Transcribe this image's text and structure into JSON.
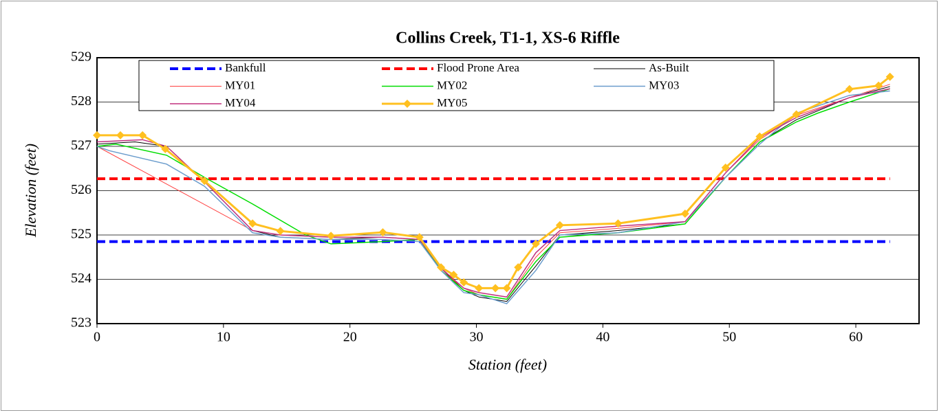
{
  "chart_data": {
    "type": "line",
    "title": "Collins Creek, T1-1, XS-6 Riffle",
    "x_label": "Station (feet)",
    "y_label": "Elevation (feet)",
    "xlim": [
      0,
      65
    ],
    "xticks": [
      0,
      10,
      20,
      30,
      40,
      50,
      60
    ],
    "ylim": [
      523,
      529
    ],
    "yticks": [
      523,
      524,
      525,
      526,
      527,
      528,
      529
    ],
    "grid": true,
    "legend": "top",
    "series": [
      {
        "name": "Bankfull",
        "color": "#0000ff",
        "dash": true,
        "width": 4,
        "x": [
          0,
          62.7
        ],
        "values": [
          524.85,
          524.85
        ]
      },
      {
        "name": "Flood Prone Area",
        "color": "#ff0000",
        "dash": true,
        "width": 4,
        "x": [
          0,
          62.7
        ],
        "values": [
          526.27,
          526.27
        ]
      },
      {
        "name": "As-Built",
        "color": "#000000",
        "width": 1,
        "x": [
          0,
          3,
          5.5,
          8.5,
          12.3,
          14.5,
          18.5,
          22.6,
          25.5,
          27.2,
          29,
          30.2,
          32.4,
          34.7,
          36.6,
          41.2,
          46.5,
          49.7,
          52.4,
          55.3,
          59.5,
          62.7
        ],
        "values": [
          527.05,
          527.1,
          527.0,
          526.2,
          525.1,
          524.95,
          524.9,
          524.95,
          524.9,
          524.25,
          523.75,
          523.6,
          523.5,
          524.3,
          525.0,
          525.1,
          525.25,
          526.3,
          527.1,
          527.6,
          528.1,
          528.35
        ]
      },
      {
        "name": "MY01",
        "color": "#ff4040",
        "width": 1,
        "x": [
          0,
          12.3,
          14.5,
          18.5,
          22.6,
          25.5,
          27.2,
          29,
          30.2,
          32.4,
          34.7,
          36.6,
          41.2,
          46.5,
          49.7,
          52.4,
          55.3,
          59.5,
          62.7
        ],
        "values": [
          527.0,
          525.1,
          525.0,
          524.95,
          524.95,
          524.9,
          524.2,
          523.8,
          523.65,
          523.55,
          524.5,
          525.05,
          525.15,
          525.3,
          526.4,
          527.15,
          527.7,
          528.1,
          528.4
        ]
      },
      {
        "name": "MY02",
        "color": "#00dd00",
        "width": 1.5,
        "x": [
          0,
          1.5,
          5.5,
          8.5,
          12.3,
          16.5,
          18.5,
          22.6,
          25.5,
          27.2,
          29,
          30.2,
          32.4,
          34.7,
          36.6,
          41.2,
          46.5,
          49.7,
          52.4,
          55.3,
          57,
          59.5,
          62.7
        ],
        "values": [
          527.0,
          527.05,
          526.8,
          526.3,
          525.7,
          525.0,
          524.8,
          524.85,
          524.9,
          524.2,
          523.75,
          523.65,
          523.55,
          524.4,
          524.95,
          525.05,
          525.25,
          526.3,
          527.1,
          527.55,
          527.75,
          528.0,
          528.3
        ]
      },
      {
        "name": "MY03",
        "color": "#6a9ccc",
        "width": 1.5,
        "x": [
          0,
          1,
          5.5,
          8.5,
          12.3,
          14.5,
          18.5,
          22.6,
          25.5,
          27.2,
          29,
          30.2,
          32.4,
          34.7,
          36.6,
          41.2,
          46.5,
          49.7,
          52.4,
          55.3,
          59.5,
          62.7
        ],
        "values": [
          527.0,
          526.9,
          526.6,
          526.1,
          525.05,
          524.95,
          524.9,
          524.9,
          524.85,
          524.2,
          523.7,
          523.65,
          523.45,
          524.2,
          525.0,
          525.05,
          525.3,
          526.3,
          527.05,
          527.75,
          528.15,
          528.25
        ]
      },
      {
        "name": "MY04",
        "color": "#c0307f",
        "width": 1.5,
        "x": [
          0,
          3.6,
          5.5,
          8.5,
          12.3,
          14.5,
          18.5,
          22.6,
          25.5,
          27.2,
          29,
          30.2,
          32.4,
          34.7,
          36.6,
          41.2,
          46.5,
          49.7,
          52.4,
          55.3,
          59.5,
          62.7
        ],
        "values": [
          527.1,
          527.15,
          527.0,
          526.2,
          525.1,
          525.0,
          524.95,
          524.95,
          524.9,
          524.25,
          523.8,
          523.7,
          523.6,
          524.6,
          525.1,
          525.2,
          525.3,
          526.4,
          527.2,
          527.65,
          528.1,
          528.3
        ]
      },
      {
        "name": "MY05",
        "color": "#ffc020",
        "width": 3,
        "marker": "diamond",
        "x": [
          0,
          1.85,
          3.6,
          5.4,
          8.5,
          12.3,
          14.5,
          18.5,
          22.6,
          25.5,
          27.2,
          28.2,
          29,
          30.2,
          31.5,
          32.4,
          33.3,
          34.7,
          36.6,
          41.2,
          46.5,
          49.7,
          52.4,
          55.3,
          59.5,
          61.8,
          62.7
        ],
        "values": [
          527.25,
          527.25,
          527.25,
          526.94,
          526.22,
          525.26,
          525.09,
          524.98,
          525.06,
          524.95,
          524.27,
          524.1,
          523.93,
          523.8,
          523.8,
          523.8,
          524.27,
          524.8,
          525.22,
          525.26,
          525.48,
          526.52,
          527.22,
          527.72,
          528.29,
          528.37,
          528.57
        ]
      }
    ]
  }
}
